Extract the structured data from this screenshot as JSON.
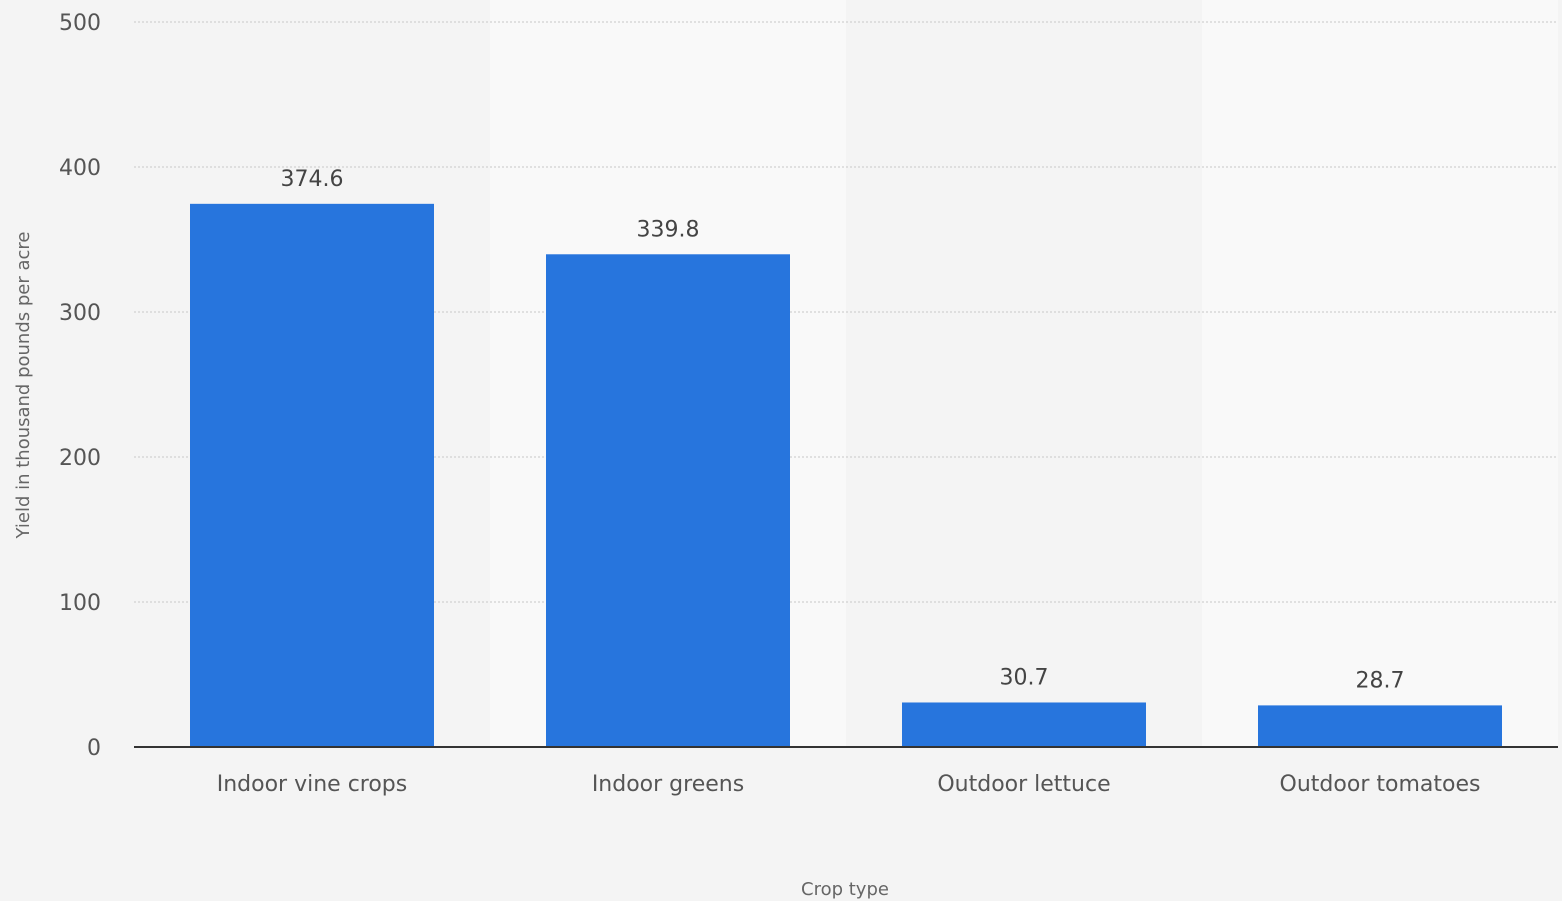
{
  "colors": {
    "bar": "#2775dd",
    "background": "#f4f4f4",
    "band_light": "#f9f9f9"
  },
  "chart_data": {
    "type": "bar",
    "categories": [
      "Indoor vine crops",
      "Indoor greens",
      "Outdoor lettuce",
      "Outdoor tomatoes"
    ],
    "values": [
      374.6,
      339.8,
      30.7,
      28.7
    ],
    "data_labels": [
      "374.6",
      "339.8",
      "30.7",
      "28.7"
    ],
    "title": "",
    "xlabel": "Crop type",
    "ylabel": "Yield in thousand pounds per acre",
    "ylim": [
      0,
      500
    ],
    "yticks": [
      0,
      100,
      200,
      300,
      400,
      500
    ],
    "grid": true,
    "legend": "none"
  }
}
